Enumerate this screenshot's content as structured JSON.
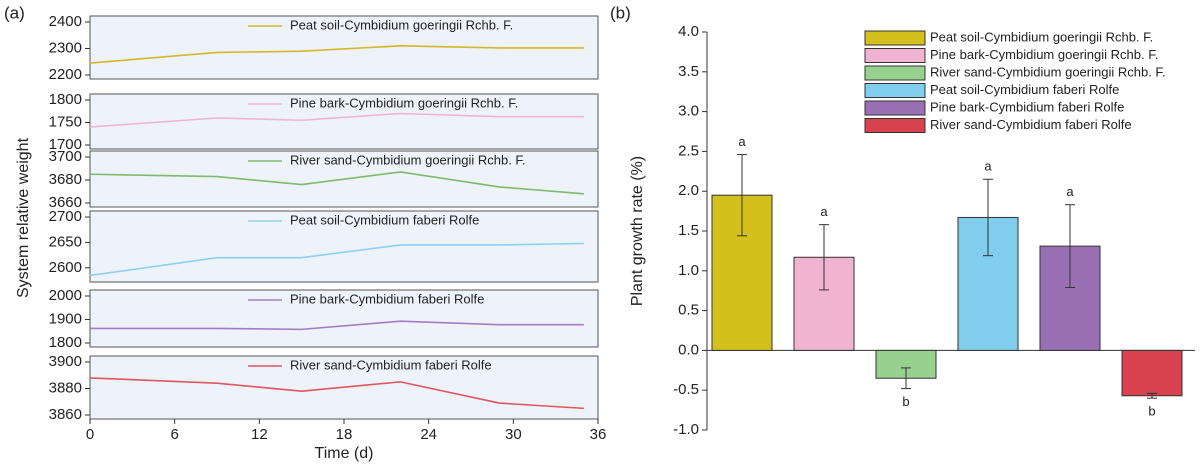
{
  "chart_data": [
    {
      "type": "line",
      "panel_label": "(a)",
      "xlabel": "Time (d)",
      "ylabel": "System relative weight",
      "xlim": [
        0,
        36
      ],
      "xticks": [
        0,
        6,
        12,
        18,
        24,
        30,
        36
      ],
      "subplots": [
        {
          "name": "Peat soil-Cymbidium goeringii Rchb. F.",
          "color": "#d4b82a",
          "x": [
            0,
            9,
            15,
            22,
            29,
            35
          ],
          "values": [
            2245,
            2285,
            2290,
            2310,
            2302,
            2302
          ],
          "ylim": [
            2200,
            2400
          ],
          "yticks": [
            2200,
            2300,
            2400
          ]
        },
        {
          "name": "Pine bark-Cymbidium goeringii Rchb. F.",
          "color": "#f0b4d0",
          "x": [
            0,
            9,
            15,
            22,
            29,
            35
          ],
          "values": [
            1740,
            1760,
            1755,
            1770,
            1763,
            1763
          ],
          "ylim": [
            1700,
            1800
          ],
          "yticks": [
            1700,
            1750,
            1800
          ]
        },
        {
          "name": "River sand-Cymbidium goeringii Rchb. F.",
          "color": "#7dbb6a",
          "x": [
            0,
            9,
            15,
            22,
            29,
            35
          ],
          "values": [
            3685,
            3683,
            3676,
            3687,
            3674,
            3668
          ],
          "ylim": [
            3660,
            3700
          ],
          "yticks": [
            3660,
            3680,
            3700
          ]
        },
        {
          "name": "Peat soil-Cymbidium faberi Rolfe",
          "color": "#8fd0ee",
          "x": [
            0,
            9,
            15,
            22,
            29,
            35
          ],
          "values": [
            2585,
            2620,
            2620,
            2645,
            2645,
            2648
          ],
          "ylim": [
            2580,
            2700
          ],
          "yticks": [
            2600,
            2650,
            2700
          ]
        },
        {
          "name": "Pine bark-Cymbidium faberi Rolfe",
          "color": "#a57cc2",
          "x": [
            0,
            9,
            15,
            22,
            29,
            35
          ],
          "values": [
            1862,
            1862,
            1858,
            1893,
            1878,
            1878
          ],
          "ylim": [
            1800,
            2000
          ],
          "yticks": [
            1800,
            1900,
            2000
          ]
        },
        {
          "name": "River sand-Cymbidium faberi Rolfe",
          "color": "#e0555d",
          "x": [
            0,
            9,
            15,
            22,
            29,
            35
          ],
          "values": [
            3888,
            3884,
            3878,
            3885,
            3869,
            3865
          ],
          "ylim": [
            3860,
            3900
          ],
          "yticks": [
            3860,
            3880,
            3900
          ]
        }
      ]
    },
    {
      "type": "bar",
      "panel_label": "(b)",
      "ylabel": "Plant growth rate (%)",
      "categories": [
        "Peat soil-Cymbidium goeringii Rchb. F.",
        "Pine bark-Cymbidium goeringii Rchb. F.",
        "River sand-Cymbidium goeringii Rchb. F.",
        "Peat soil-Cymbidium faberi Rolfe",
        "Pine bark-Cymbidium faberi Rolfe",
        "River sand-Cymbidium faberi Rolfe"
      ],
      "colors": [
        "#d4c01c",
        "#f0b4d0",
        "#98d090",
        "#80cdee",
        "#9a70b4",
        "#d8414e"
      ],
      "values": [
        1.95,
        1.17,
        -0.35,
        1.67,
        1.31,
        -0.57
      ],
      "errors": [
        0.51,
        0.41,
        0.13,
        0.48,
        0.52,
        0.03
      ],
      "annotations": [
        "a",
        "a",
        "b",
        "a",
        "a",
        "b"
      ],
      "ylim": [
        -1,
        4
      ],
      "yticks": [
        {
          "value": -1,
          "label": "-1.0"
        },
        {
          "value": -0.5,
          "label": "-0.5"
        },
        {
          "value": 0,
          "label": "0.0"
        },
        {
          "value": 0.5,
          "label": "0.5"
        },
        {
          "value": 1,
          "label": "1.0"
        },
        {
          "value": 1.5,
          "label": "1.5"
        },
        {
          "value": 2,
          "label": "2.0"
        },
        {
          "value": 2.5,
          "label": "2.5"
        },
        {
          "value": 3,
          "label": "3.0"
        },
        {
          "value": 3.5,
          "label": "3.5"
        },
        {
          "value": 4,
          "label": "4.0"
        }
      ]
    }
  ]
}
